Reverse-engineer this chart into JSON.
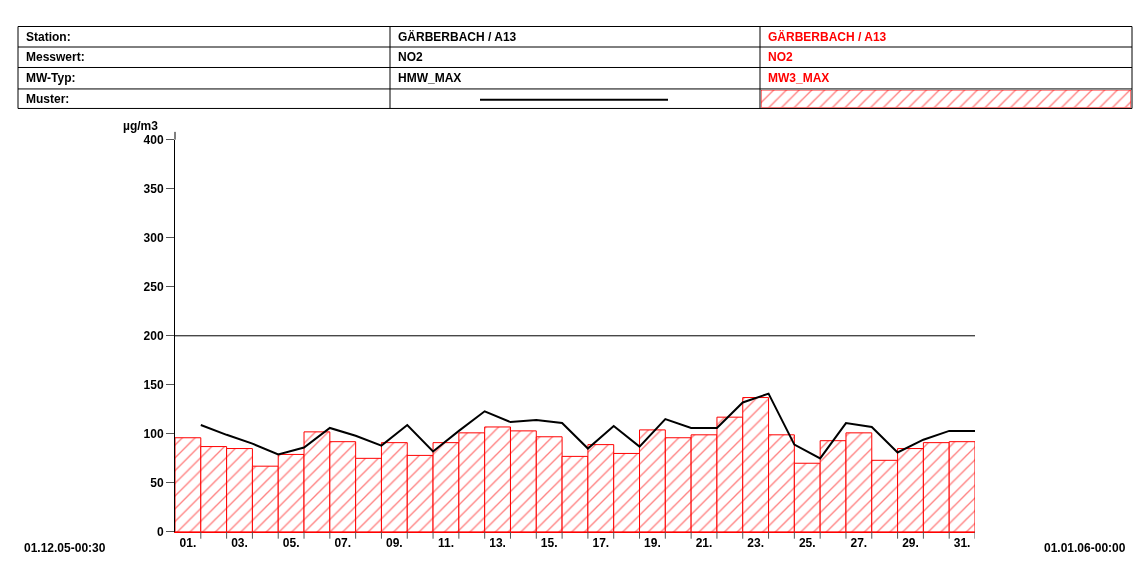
{
  "chart_data": {
    "type": "bar",
    "ylabel": "µg/m3",
    "x": [
      1,
      2,
      3,
      4,
      5,
      6,
      7,
      8,
      9,
      10,
      11,
      12,
      13,
      14,
      15,
      16,
      17,
      18,
      19,
      20,
      21,
      22,
      23,
      24,
      25,
      26,
      27,
      28,
      29,
      30,
      31
    ],
    "series": [
      {
        "color": "#ff0000",
        "values": [
          96,
          87,
          85,
          67,
          79,
          102,
          92,
          75,
          91,
          78,
          91,
          101,
          107,
          103,
          97,
          77,
          89,
          80,
          104,
          96,
          99,
          117,
          137,
          99,
          70,
          93,
          101,
          73,
          85,
          91,
          92
        ]
      },
      {
        "type": "line",
        "color": "#000000",
        "x": [
          1.5,
          2.5,
          3.5,
          4.5,
          5.5,
          6.5,
          7.5,
          8.5,
          9.5,
          10.5,
          11.5,
          12.5,
          13.5,
          14.5,
          15.5,
          16.5,
          17.5,
          18.5,
          19.5,
          20.5,
          21.5,
          22.5,
          23.5,
          24.5,
          25.5,
          26.5,
          27.5,
          28.5,
          29.5,
          30.5,
          31.5
        ],
        "values": [
          109,
          99,
          90,
          79,
          86,
          106,
          98,
          88,
          109,
          82,
          103,
          123,
          112,
          114,
          111,
          85,
          108,
          87,
          115,
          106,
          106,
          132,
          141,
          89,
          75,
          111,
          107,
          81,
          94,
          103,
          103
        ]
      }
    ],
    "xlim": [
      0.5,
      31.5
    ],
    "xticks": [
      {
        "value": 1,
        "label": "01."
      },
      {
        "value": 3,
        "label": "03."
      },
      {
        "value": 5,
        "label": "05."
      },
      {
        "value": 7,
        "label": "07."
      },
      {
        "value": 9,
        "label": "09."
      },
      {
        "value": 11,
        "label": "11."
      },
      {
        "value": 13,
        "label": "13."
      },
      {
        "value": 15,
        "label": "15."
      },
      {
        "value": 17,
        "label": "17."
      },
      {
        "value": 19,
        "label": "19."
      },
      {
        "value": 21,
        "label": "21."
      },
      {
        "value": 23,
        "label": "23."
      },
      {
        "value": 25,
        "label": "25."
      },
      {
        "value": 27,
        "label": "27."
      },
      {
        "value": 29,
        "label": "29."
      },
      {
        "value": 31,
        "label": "31."
      },
      {
        "value": 1.5,
        "label": null
      },
      {
        "value": 2.5,
        "label": null
      },
      {
        "value": 3.5,
        "label": null
      },
      {
        "value": 4.5,
        "label": null
      },
      {
        "value": 5.5,
        "label": null
      },
      {
        "value": 6.5,
        "label": null
      },
      {
        "value": 7.5,
        "label": null
      },
      {
        "value": 8.5,
        "label": null
      },
      {
        "value": 9.5,
        "label": null
      },
      {
        "value": 10.5,
        "label": null
      },
      {
        "value": 11.5,
        "label": null
      },
      {
        "value": 12.5,
        "label": null
      },
      {
        "value": 13.5,
        "label": null
      },
      {
        "value": 14.5,
        "label": null
      },
      {
        "value": 15.5,
        "label": null
      },
      {
        "value": 16.5,
        "label": null
      },
      {
        "value": 17.5,
        "label": null
      },
      {
        "value": 18.5,
        "label": null
      },
      {
        "value": 19.5,
        "label": null
      },
      {
        "value": 20.5,
        "label": null
      },
      {
        "value": 21.5,
        "label": null
      },
      {
        "value": 22.5,
        "label": null
      },
      {
        "value": 23.5,
        "label": null
      },
      {
        "value": 24.5,
        "label": null
      },
      {
        "value": 25.5,
        "label": null
      },
      {
        "value": 26.5,
        "label": null
      },
      {
        "value": 27.5,
        "label": null
      },
      {
        "value": 28.5,
        "label": null
      },
      {
        "value": 29.5,
        "label": null
      },
      {
        "value": 30.5,
        "label": null
      },
      {
        "value": 31.5,
        "label": null
      }
    ],
    "ylim": [
      0,
      400
    ],
    "yticks": [
      0,
      50,
      100,
      150,
      200,
      250,
      300,
      350,
      400
    ],
    "ref_lines": [
      {
        "axis": "y",
        "value": 200,
        "color": "#000000"
      }
    ],
    "annotations": [
      "Station:",
      "Messwert:",
      "MW-Typ:",
      "Muster:",
      "GÄRBERBACH / A13",
      "NO2",
      "HMW_MAX",
      "GÄRBERBACH / A13",
      "NO2",
      "MW3_MAX",
      "01.12.05-00:30",
      "01.01.06-00:00"
    ]
  }
}
